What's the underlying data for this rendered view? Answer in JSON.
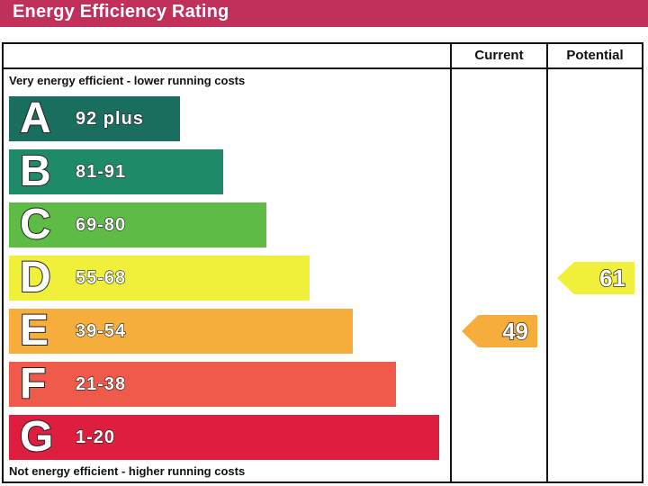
{
  "banner": {
    "title": "Energy Efficiency Rating",
    "color": "#c0305a"
  },
  "columns": {
    "current_label": "Current",
    "potential_label": "Potential"
  },
  "chart_data": {
    "type": "bar",
    "title": "Energy Efficiency Rating",
    "top_caption": "Very energy efficient - lower running costs",
    "bottom_caption": "Not energy efficient - higher running costs",
    "bands": [
      {
        "letter": "A",
        "range": "92 plus",
        "color": "#1a6e5e",
        "score_min": 92,
        "score_max": 100
      },
      {
        "letter": "B",
        "range": "81-91",
        "color": "#1f8a6a",
        "score_min": 81,
        "score_max": 91
      },
      {
        "letter": "C",
        "range": "69-80",
        "color": "#5dbb46",
        "score_min": 69,
        "score_max": 80
      },
      {
        "letter": "D",
        "range": "55-68",
        "color": "#f0ef3a",
        "score_min": 55,
        "score_max": 68
      },
      {
        "letter": "E",
        "range": "39-54",
        "color": "#f6ad3c",
        "score_min": 39,
        "score_max": 54
      },
      {
        "letter": "F",
        "range": "21-38",
        "color": "#ef5a4a",
        "score_min": 21,
        "score_max": 38
      },
      {
        "letter": "G",
        "range": "1-20",
        "color": "#dd1e3f",
        "score_min": 1,
        "score_max": 20
      }
    ],
    "current": {
      "value": "49",
      "band": "E",
      "color": "#f6ad3c"
    },
    "potential": {
      "value": "61",
      "band": "D",
      "color": "#f0ef3a"
    }
  }
}
